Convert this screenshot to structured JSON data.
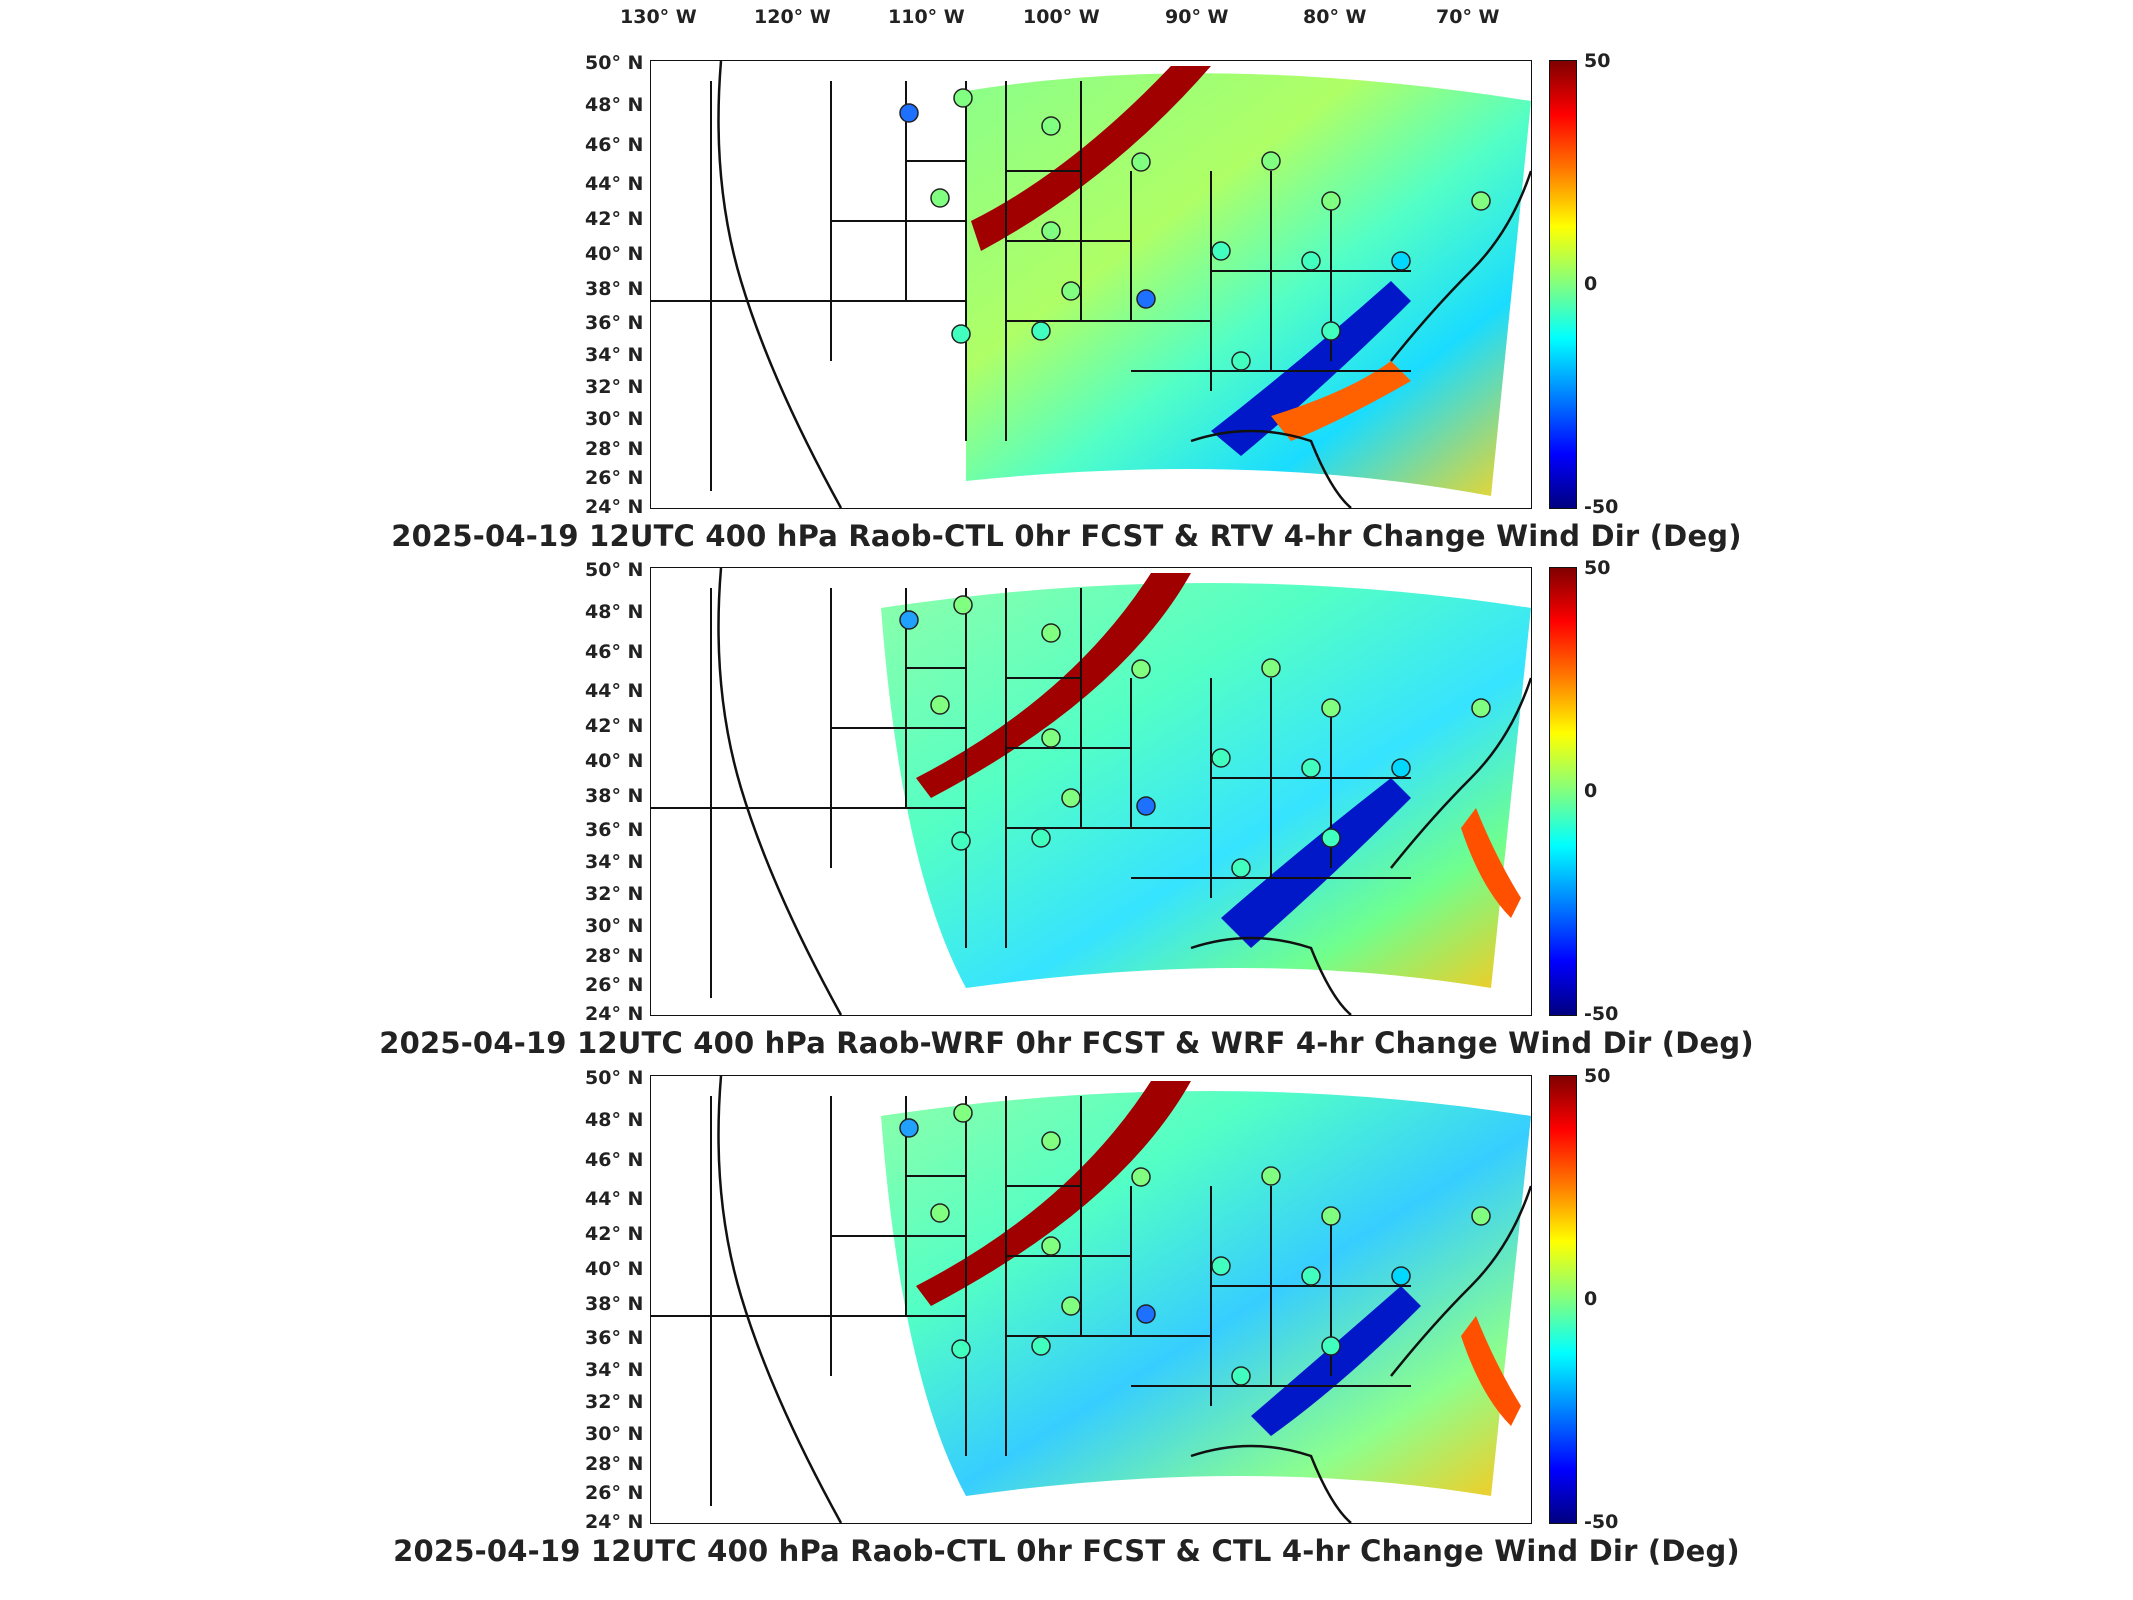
{
  "lon_labels": [
    "130° W",
    "120° W",
    "110° W",
    "100° W",
    "90° W",
    "80° W",
    "70° W"
  ],
  "lat_labels": [
    "50° N",
    "48° N",
    "46° N",
    "44° N",
    "42° N",
    "40° N",
    "38° N",
    "36° N",
    "34° N",
    "32° N",
    "30° N",
    "28° N",
    "26° N",
    "24° N"
  ],
  "colorbar": {
    "max": "50",
    "mid": "0",
    "min": "-50"
  },
  "panels": [
    {
      "title": "2025-04-19 12UTC 400 hPa Raob-CTL 0hr FCST & RTV 4-hr Change Wind Dir (Deg)"
    },
    {
      "title": "2025-04-19 12UTC 400 hPa Raob-WRF 0hr FCST & WRF 4-hr Change Wind Dir (Deg)"
    },
    {
      "title": "2025-04-19 12UTC 400 hPa Raob-CTL 0hr FCST & CTL 4-hr Change Wind Dir (Deg)"
    }
  ]
}
